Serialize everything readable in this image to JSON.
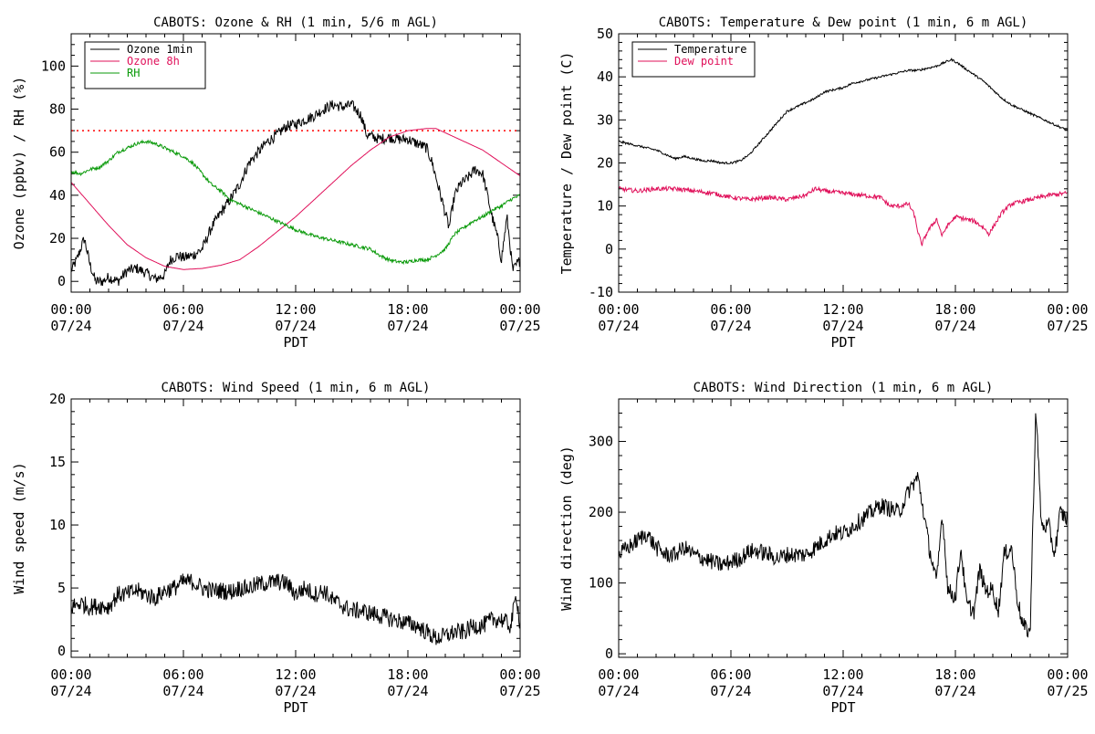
{
  "colors": {
    "black": "#000000",
    "magenta": "#e0105a",
    "green": "#0a9a0a",
    "red": "#ff0000"
  },
  "chart_data": [
    {
      "type": "line",
      "title": "CABOTS: Ozone & RH (1 min, 5/6 m AGL)",
      "xlabel": "PDT",
      "ylabel": "Ozone (ppbv) / RH (%)",
      "xlim": [
        0,
        24
      ],
      "ylim": [
        -5,
        115
      ],
      "x_ticks": [
        0,
        6,
        12,
        18,
        24
      ],
      "x_tick_labels": [
        [
          "00:00",
          "07/24"
        ],
        [
          "06:00",
          "07/24"
        ],
        [
          "12:00",
          "07/24"
        ],
        [
          "18:00",
          "07/24"
        ],
        [
          "00:00",
          "07/25"
        ]
      ],
      "y_ticks": [
        0,
        20,
        40,
        60,
        80,
        100
      ],
      "y_tick_labels": [
        "0",
        "20",
        "40",
        "60",
        "80",
        "100"
      ],
      "y_minor_step": 5,
      "reference_line": {
        "y": 70,
        "style": "dotted",
        "color": "#ff0000"
      },
      "legend_position": "top-left",
      "series": [
        {
          "name": "Ozone 1min",
          "color": "#000000",
          "noise": 2.5,
          "x": [
            0,
            0.3,
            0.7,
            1.0,
            1.3,
            1.7,
            2.0,
            2.5,
            3.0,
            3.5,
            4.0,
            4.5,
            5.0,
            5.3,
            5.7,
            6.0,
            6.5,
            7.0,
            7.5,
            8.0,
            8.5,
            9.0,
            9.5,
            10.0,
            10.5,
            11.0,
            11.5,
            12.0,
            12.5,
            13.0,
            13.5,
            14.0,
            14.5,
            15.0,
            15.5,
            15.8,
            16.2,
            16.5,
            17.0,
            17.5,
            18.0,
            18.5,
            19.0,
            19.3,
            19.6,
            19.9,
            20.2,
            20.5,
            20.8,
            21.2,
            21.6,
            22.0,
            22.5,
            22.8,
            23.0,
            23.3,
            23.6,
            24.0
          ],
          "y": [
            5,
            10,
            20,
            8,
            0,
            0,
            2,
            0,
            5,
            6,
            4,
            1,
            3,
            10,
            12,
            11,
            12,
            15,
            25,
            32,
            38,
            45,
            55,
            60,
            65,
            68,
            72,
            73,
            75,
            77,
            80,
            82,
            81,
            82,
            77,
            68,
            67,
            66,
            67,
            66,
            66,
            64,
            62,
            55,
            45,
            35,
            25,
            40,
            45,
            48,
            52,
            50,
            30,
            20,
            10,
            30,
            5,
            10
          ]
        },
        {
          "name": "Ozone 8h",
          "color": "#e0105a",
          "noise": 0,
          "x": [
            0,
            1,
            2,
            3,
            4,
            5,
            6,
            7,
            8,
            9,
            10,
            11,
            12,
            13,
            14,
            15,
            16,
            17,
            18,
            19,
            19.5,
            20,
            21,
            22,
            23,
            24
          ],
          "y": [
            46,
            36,
            26,
            17,
            11,
            7,
            5.5,
            6,
            7.5,
            10,
            16,
            23,
            30,
            38,
            46,
            54,
            61,
            67,
            70,
            71,
            71,
            69,
            65,
            61,
            55,
            49
          ]
        },
        {
          "name": "RH",
          "color": "#0a9a0a",
          "noise": 0.8,
          "x": [
            0,
            0.5,
            1,
            1.5,
            2,
            2.5,
            3,
            3.5,
            4,
            4.5,
            5,
            5.5,
            6,
            6.5,
            7,
            7.5,
            8,
            8.5,
            9,
            9.5,
            10,
            11,
            12,
            13,
            14,
            15,
            16,
            16.5,
            17,
            17.5,
            18,
            18.5,
            19,
            19.5,
            20,
            20.5,
            21,
            21.5,
            22,
            22.5,
            23,
            23.5,
            24
          ],
          "y": [
            51,
            50,
            52,
            53,
            56,
            60,
            62,
            64,
            65,
            64,
            62,
            60,
            58,
            55,
            50,
            45,
            42,
            38,
            36,
            34,
            32,
            28,
            24,
            21,
            19,
            17,
            15,
            12,
            10,
            9,
            9,
            10,
            10,
            12,
            15,
            22,
            25,
            28,
            30,
            33,
            35,
            38,
            40
          ]
        }
      ]
    },
    {
      "type": "line",
      "title": "CABOTS: Temperature & Dew point (1 min, 6 m AGL)",
      "xlabel": "PDT",
      "ylabel": "Temperature / Dew point (C)",
      "xlim": [
        0,
        24
      ],
      "ylim": [
        -10,
        50
      ],
      "x_ticks": [
        0,
        6,
        12,
        18,
        24
      ],
      "x_tick_labels": [
        [
          "00:00",
          "07/24"
        ],
        [
          "06:00",
          "07/24"
        ],
        [
          "12:00",
          "07/24"
        ],
        [
          "18:00",
          "07/24"
        ],
        [
          "00:00",
          "07/25"
        ]
      ],
      "y_ticks": [
        -10,
        0,
        10,
        20,
        30,
        40,
        50
      ],
      "y_tick_labels": [
        "-10",
        "0",
        "10",
        "20",
        "30",
        "40",
        "50"
      ],
      "y_minor_step": 2,
      "legend_position": "top-left",
      "series": [
        {
          "name": "Temperature",
          "color": "#000000",
          "noise": 0.25,
          "x": [
            0,
            0.5,
            1,
            1.5,
            2,
            2.5,
            3,
            3.5,
            4,
            4.5,
            5,
            5.5,
            6,
            6.5,
            7,
            7.5,
            8,
            8.5,
            9,
            9.5,
            10,
            10.5,
            11,
            11.5,
            12,
            12.5,
            13,
            13.5,
            14,
            14.5,
            15,
            15.5,
            16,
            16.5,
            17,
            17.5,
            17.8,
            18.2,
            18.5,
            19,
            19.5,
            20,
            20.5,
            21,
            21.5,
            22,
            22.5,
            23,
            23.5,
            24
          ],
          "y": [
            25,
            24.5,
            24,
            23.5,
            23,
            22,
            21,
            21.5,
            21,
            20.5,
            20.5,
            20,
            20,
            20.5,
            22,
            24.5,
            27,
            29.5,
            32,
            33,
            34,
            35,
            36.5,
            37,
            37.5,
            38.5,
            39,
            39.5,
            40,
            40.5,
            41,
            41.5,
            41.5,
            42,
            42.5,
            43.5,
            44,
            43,
            42,
            40.5,
            39,
            37,
            35,
            33.5,
            32.5,
            31.5,
            30.5,
            29.5,
            28.5,
            27.5
          ]
        },
        {
          "name": "Dew point",
          "color": "#e0105a",
          "noise": 0.5,
          "x": [
            0,
            1,
            2,
            3,
            4,
            5,
            6,
            7,
            8,
            9,
            10,
            10.5,
            11,
            12,
            13,
            14,
            14.5,
            15,
            15.5,
            15.8,
            16,
            16.2,
            16.5,
            17,
            17.3,
            17.5,
            18,
            18.5,
            19,
            19.5,
            19.8,
            20,
            20.5,
            21,
            21.5,
            22,
            23,
            24
          ],
          "y": [
            14,
            13.5,
            14,
            14,
            13.5,
            13,
            12,
            11.5,
            12,
            11.5,
            12.5,
            14,
            13.5,
            13,
            12.5,
            12,
            10,
            10,
            10.5,
            8,
            4,
            1,
            4,
            7,
            3,
            5,
            7.5,
            7,
            6.5,
            5,
            3.5,
            5,
            8.5,
            10.5,
            11,
            11.5,
            12.5,
            13
          ]
        }
      ]
    },
    {
      "type": "line",
      "title": "CABOTS: Wind Speed (1 min, 6 m AGL)",
      "xlabel": "PDT",
      "ylabel": "Wind speed (m/s)",
      "xlim": [
        0,
        24
      ],
      "ylim": [
        -0.5,
        20
      ],
      "x_ticks": [
        0,
        6,
        12,
        18,
        24
      ],
      "x_tick_labels": [
        [
          "00:00",
          "07/24"
        ],
        [
          "06:00",
          "07/24"
        ],
        [
          "12:00",
          "07/24"
        ],
        [
          "18:00",
          "07/24"
        ],
        [
          "00:00",
          "07/25"
        ]
      ],
      "y_ticks": [
        0,
        5,
        10,
        15,
        20
      ],
      "y_tick_labels": [
        "0",
        "5",
        "10",
        "15",
        "20"
      ],
      "y_minor_step": 1,
      "legend_position": "none",
      "series": [
        {
          "name": "",
          "color": "#000000",
          "noise": 0.7,
          "x": [
            0,
            0.5,
            1,
            1.5,
            2,
            2.5,
            3,
            3.5,
            4,
            4.5,
            5,
            5.5,
            6,
            6.5,
            7,
            7.5,
            8,
            8.5,
            9,
            9.5,
            10,
            10.5,
            11,
            11.5,
            12,
            12.5,
            13,
            13.5,
            14,
            14.5,
            15,
            15.5,
            16,
            16.5,
            17,
            17.5,
            18,
            18.5,
            19,
            19.5,
            20,
            20.5,
            21,
            21.5,
            22,
            22.5,
            23,
            23.5,
            23.8,
            24
          ],
          "y": [
            3.5,
            3.8,
            3.5,
            3.6,
            3.5,
            4.5,
            4.5,
            4.8,
            4.5,
            4.2,
            4.8,
            5.0,
            5.5,
            5.5,
            5.0,
            4.8,
            4.8,
            4.7,
            5.0,
            5.0,
            5.3,
            5.4,
            5.5,
            5.4,
            4.5,
            5.0,
            4.5,
            4.8,
            4.0,
            3.6,
            3.2,
            3.2,
            3.0,
            2.8,
            2.6,
            2.4,
            2.2,
            2.0,
            1.5,
            1.0,
            1.2,
            1.5,
            1.5,
            2.0,
            2.0,
            2.5,
            2.5,
            2.0,
            4.5,
            2.0
          ]
        }
      ]
    },
    {
      "type": "line",
      "title": "CABOTS: Wind Direction (1 min, 6 m AGL)",
      "xlabel": "PDT",
      "ylabel": "Wind direction (deg)",
      "xlim": [
        0,
        24
      ],
      "ylim": [
        -5,
        360
      ],
      "x_ticks": [
        0,
        6,
        12,
        18,
        24
      ],
      "x_tick_labels": [
        [
          "00:00",
          "07/24"
        ],
        [
          "06:00",
          "07/24"
        ],
        [
          "12:00",
          "07/24"
        ],
        [
          "18:00",
          "07/24"
        ],
        [
          "00:00",
          "07/25"
        ]
      ],
      "y_ticks": [
        0,
        100,
        200,
        300
      ],
      "y_tick_labels": [
        "0",
        "100",
        "200",
        "300"
      ],
      "y_minor_step": 20,
      "legend_position": "none",
      "series": [
        {
          "name": "",
          "color": "#000000",
          "noise": 12,
          "x": [
            0,
            0.5,
            1,
            1.5,
            2,
            2.5,
            3,
            3.5,
            4,
            4.5,
            5,
            5.5,
            6,
            6.5,
            7,
            7.5,
            8,
            8.5,
            9,
            9.5,
            10,
            10.5,
            11,
            11.5,
            12,
            12.5,
            13,
            13.5,
            14,
            14.5,
            15,
            15.5,
            16,
            16.3,
            16.6,
            17,
            17.3,
            17.6,
            18,
            18.3,
            18.6,
            19,
            19.3,
            19.6,
            20,
            20.3,
            20.6,
            21,
            21.3,
            21.6,
            22,
            22.3,
            22.6,
            23,
            23.3,
            23.6,
            24
          ],
          "y": [
            140,
            150,
            160,
            170,
            150,
            140,
            140,
            150,
            140,
            135,
            130,
            125,
            130,
            135,
            145,
            145,
            140,
            135,
            140,
            140,
            140,
            150,
            160,
            170,
            170,
            180,
            190,
            200,
            210,
            205,
            200,
            230,
            250,
            200,
            150,
            100,
            200,
            90,
            80,
            150,
            70,
            60,
            120,
            90,
            90,
            60,
            140,
            150,
            80,
            40,
            30,
            350,
            180,
            180,
            140,
            200,
            190
          ]
        }
      ]
    }
  ]
}
